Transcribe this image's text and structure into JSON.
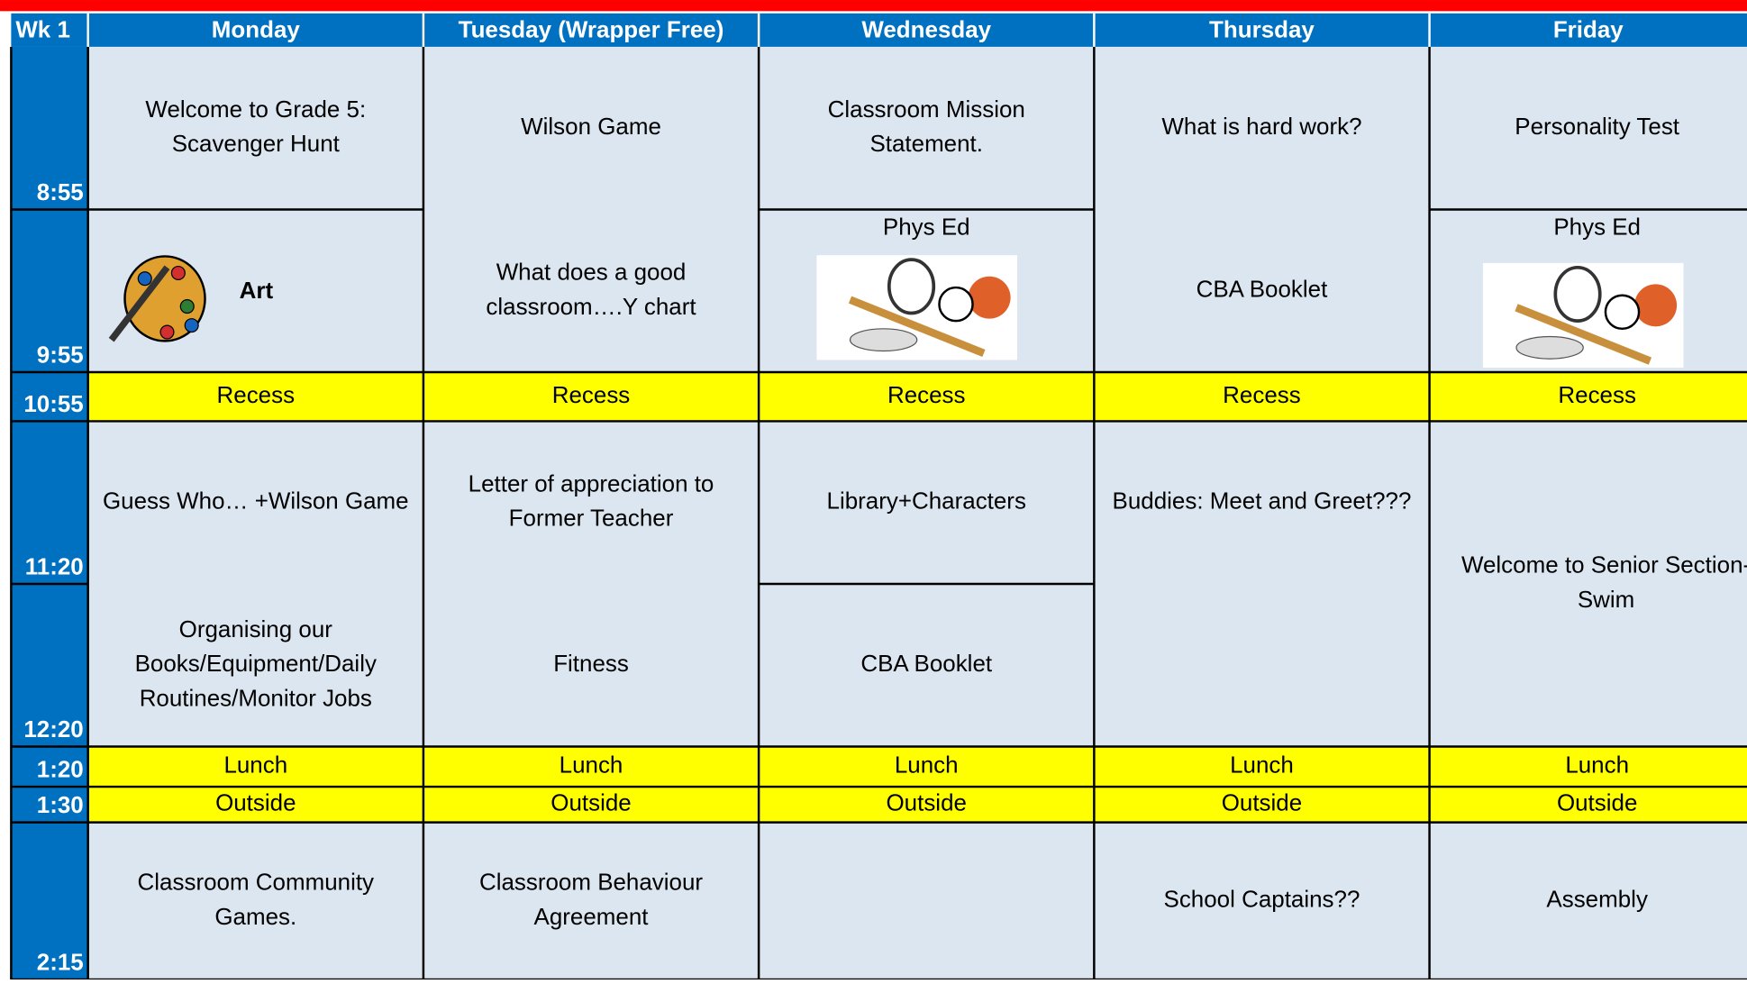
{
  "header": {
    "corner": "Wk 1",
    "days": [
      "Monday",
      "Tuesday (Wrapper Free)",
      "Wednesday",
      "Thursday",
      "Friday"
    ]
  },
  "times": [
    "8:55",
    "9:55",
    "10:55",
    "11:20",
    "12:20",
    "1:20",
    "1:30",
    "2:15"
  ],
  "columns": [
    {
      "slots": [
        [
          "Welcome to Grade 5:",
          "Scavenger Hunt"
        ],
        [
          "Art"
        ],
        [
          "Recess"
        ],
        [
          "Guess Who…  +Wilson Game"
        ],
        [
          "Organising our",
          "Books/Equipment/Daily",
          "Routines/Monitor Jobs"
        ],
        [
          "Lunch"
        ],
        [
          "Outside"
        ],
        [
          "Classroom Community",
          "Games."
        ]
      ]
    },
    {
      "slots": [
        [
          "Wilson Game"
        ],
        [
          "What does a good",
          "classroom….Y chart"
        ],
        [
          "Recess"
        ],
        [
          "Letter of appreciation to",
          "Former Teacher"
        ],
        [
          "Fitness"
        ],
        [
          "Lunch"
        ],
        [
          "Outside"
        ],
        [
          "Classroom Behaviour",
          "Agreement"
        ]
      ]
    },
    {
      "slots": [
        [
          "Classroom Mission",
          "Statement."
        ],
        [
          "Phys Ed"
        ],
        [
          "Recess"
        ],
        [
          "Library+Characters"
        ],
        [
          "CBA Booklet"
        ],
        [
          "Lunch"
        ],
        [
          "Outside"
        ]
      ]
    },
    {
      "slots": [
        [
          "What is hard work?"
        ],
        [
          "CBA Booklet"
        ],
        [
          "Recess"
        ],
        [
          "Buddies: Meet and Greet???"
        ],
        [
          "Lunch"
        ],
        [
          "Outside"
        ],
        [
          "School Captains??"
        ]
      ]
    },
    {
      "slots": [
        [
          "Personality Test"
        ],
        [
          "Phys Ed"
        ],
        [
          "Recess"
        ],
        [
          "Welcome to Senior Section-",
          "Swim"
        ],
        [
          "Lunch"
        ],
        [
          "Outside"
        ],
        [
          "Assembly"
        ]
      ]
    }
  ]
}
